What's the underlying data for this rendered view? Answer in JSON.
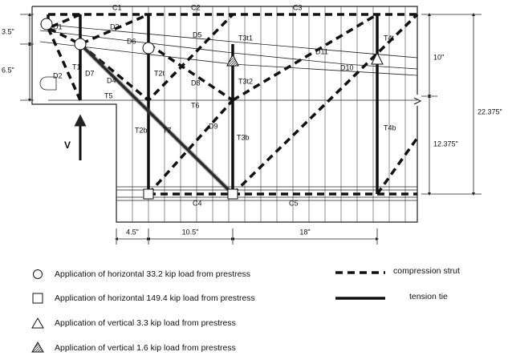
{
  "struts": [
    "C1",
    "C2",
    "C3",
    "C4",
    "C5"
  ],
  "diagonals": [
    "D1",
    "D2",
    "D3",
    "D4",
    "D5",
    "D6",
    "D7",
    "D8",
    "D9",
    "D10",
    "D11"
  ],
  "ties": [
    "T1",
    "T2t",
    "T2b",
    "T3t1",
    "T3t2",
    "T3b",
    "T4t",
    "T4b",
    "T5",
    "T6",
    "T7"
  ],
  "load": "V",
  "dimensions": {
    "left": [
      "3.5\"",
      "6.5\""
    ],
    "right": [
      "10\"",
      "12.375\"",
      "22.375\""
    ],
    "bottom": [
      "4.5\"",
      "10.5\"",
      "18\""
    ]
  },
  "legend": {
    "symbols": [
      "Application of horizontal 33.2 kip load from prestress",
      "Application of horizontal 149.4 kip load from prestress",
      "Application of vertical 3.3 kip load from prestress",
      "Application of vertical 1.6 kip load from prestress"
    ],
    "lines": [
      "compression strut",
      "tension tie"
    ]
  }
}
